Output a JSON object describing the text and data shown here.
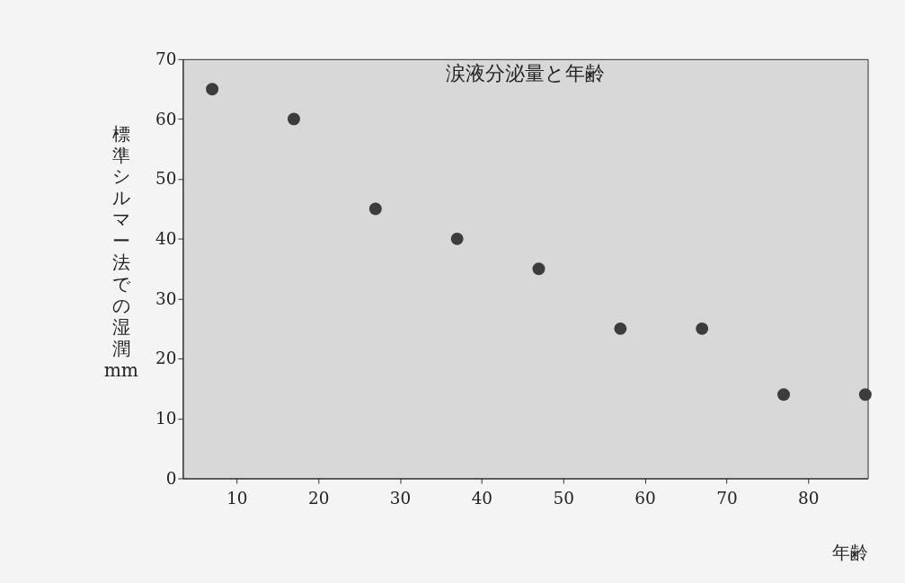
{
  "chart_data": {
    "type": "scatter",
    "title": "涙液分泌量と年齢",
    "xlabel": "年齢",
    "ylabel": "標準シルマー法での湿潤mm",
    "x": [
      7,
      17,
      27,
      37,
      47,
      57,
      67,
      77,
      87
    ],
    "series": [
      {
        "color": "#3c3c3c",
        "values": [
          65,
          60,
          45,
          40,
          35,
          25,
          25,
          14,
          14
        ]
      }
    ],
    "xlim": [
      3.4,
      87.3
    ],
    "xticks": [
      10,
      20,
      30,
      40,
      50,
      60,
      70,
      80
    ],
    "ylim": [
      0,
      70
    ],
    "yticks": [
      0,
      10,
      20,
      30,
      40,
      50,
      60,
      70
    ],
    "grid": false,
    "legend": false,
    "marker": "circle"
  }
}
